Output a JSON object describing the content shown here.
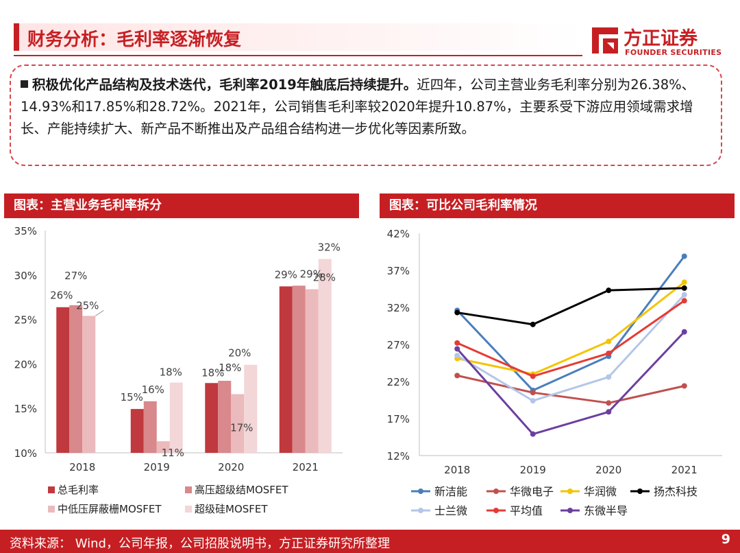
{
  "header": {
    "title": "财务分析：毛利率逐渐恢复",
    "logo_cn": "方正证券",
    "logo_en": "FOUNDER SECURITIES"
  },
  "summary": {
    "bold_text": "积极优化产品结构及技术迭代，毛利率2019年触底后持续提升。",
    "body_text": "近四年，公司主营业务毛利率分别为26.38%、14.93%和17.85%和28.72%。2021年，公司销售毛利率较2020年提升10.87%，主要系受下游应用领域需求增长、产能持续扩大、新产品不断推出及产品组合结构进一步优化等因素所致。"
  },
  "left_panel": {
    "title": "图表：主营业务毛利率拆分"
  },
  "right_panel": {
    "title": "图表：可比公司毛利率情况"
  },
  "footer": {
    "source": "资料来源： Wind，公司年报，公司招股说明书，方正证券研究所整理",
    "page": "9"
  },
  "colors": {
    "brand": "#c61f23",
    "bar_series": [
      "#c0393e",
      "#d9888b",
      "#ebbabc",
      "#f3d6d7"
    ],
    "line_series": [
      "#4a7ebb",
      "#c0504d",
      "#f4c400",
      "#000000",
      "#b4c6e7",
      "#e53b33",
      "#6b3fa0"
    ]
  },
  "chart_data": [
    {
      "type": "bar",
      "title": "主营业务毛利率拆分",
      "categories": [
        "2018",
        "2019",
        "2020",
        "2021"
      ],
      "yticks": [
        "10%",
        "15%",
        "20%",
        "25%",
        "30%",
        "35%"
      ],
      "ylim": [
        10,
        35
      ],
      "series": [
        {
          "name": "总毛利率",
          "values": [
            26.38,
            14.93,
            17.85,
            28.72
          ],
          "labels": [
            "26%",
            "15%",
            "18%",
            "29%"
          ]
        },
        {
          "name": "高压超级结MOSFET",
          "values": [
            26.6,
            15.8,
            18.1,
            28.8
          ],
          "labels": [
            "27%",
            "16%",
            "18%",
            "29%"
          ]
        },
        {
          "name": "中低压屏蔽栅MOSFET",
          "values": [
            25.4,
            11.3,
            16.6,
            28.4
          ],
          "labels": [
            "25%",
            "11%",
            "17%",
            "28%"
          ]
        },
        {
          "name": "超级硅MOSFET",
          "values": [
            null,
            17.9,
            19.9,
            31.8
          ],
          "labels": [
            "",
            "18%",
            "20%",
            "32%"
          ]
        }
      ]
    },
    {
      "type": "line",
      "title": "可比公司毛利率情况",
      "categories": [
        "2018",
        "2019",
        "2020",
        "2021"
      ],
      "yticks": [
        "12%",
        "17%",
        "22%",
        "27%",
        "32%",
        "37%",
        "42%"
      ],
      "ylim": [
        12,
        42
      ],
      "series": [
        {
          "name": "新洁能",
          "values": [
            31.6,
            20.8,
            25.4,
            38.9
          ]
        },
        {
          "name": "华微电子",
          "values": [
            22.8,
            20.5,
            19.1,
            21.4
          ]
        },
        {
          "name": "华润微",
          "values": [
            25.1,
            23.0,
            27.4,
            35.4
          ]
        },
        {
          "name": "扬杰科技",
          "values": [
            31.3,
            29.7,
            34.3,
            34.6
          ]
        },
        {
          "name": "士兰微",
          "values": [
            25.5,
            19.4,
            22.6,
            33.7
          ]
        },
        {
          "name": "平均值",
          "values": [
            27.2,
            22.7,
            25.8,
            32.9
          ]
        },
        {
          "name": "东微半导",
          "values": [
            26.4,
            14.9,
            17.9,
            28.7
          ]
        }
      ]
    }
  ]
}
